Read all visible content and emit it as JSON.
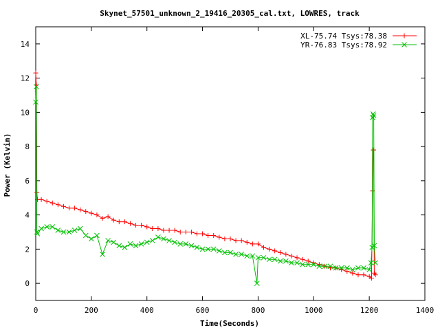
{
  "chart_data": {
    "type": "line",
    "title": "Skynet_57501_unknown_2_19416_20305_cal.txt, LOWRES, track",
    "xlabel": "Time(Seconds)",
    "ylabel": "Power (Kelvin)",
    "xlim": [
      0,
      1400
    ],
    "ylim": [
      -1,
      15
    ],
    "xticks": [
      0,
      200,
      400,
      600,
      800,
      1000,
      1200,
      1400
    ],
    "yticks": [
      0,
      2,
      4,
      6,
      8,
      10,
      12,
      14
    ],
    "grid": false,
    "legend_position": "top-right",
    "series": [
      {
        "name": "XL-75.74 Tsys:78.38",
        "color": "#ff0000",
        "marker": "plus",
        "points": [
          [
            0,
            12.3
          ],
          [
            2,
            11.6
          ],
          [
            4,
            5.3
          ],
          [
            6,
            4.9
          ],
          [
            20,
            4.9
          ],
          [
            40,
            4.8
          ],
          [
            60,
            4.7
          ],
          [
            80,
            4.6
          ],
          [
            100,
            4.5
          ],
          [
            120,
            4.4
          ],
          [
            140,
            4.4
          ],
          [
            160,
            4.3
          ],
          [
            180,
            4.2
          ],
          [
            200,
            4.1
          ],
          [
            220,
            4.0
          ],
          [
            240,
            3.8
          ],
          [
            260,
            3.9
          ],
          [
            280,
            3.7
          ],
          [
            300,
            3.6
          ],
          [
            320,
            3.6
          ],
          [
            340,
            3.5
          ],
          [
            360,
            3.4
          ],
          [
            380,
            3.4
          ],
          [
            400,
            3.3
          ],
          [
            420,
            3.2
          ],
          [
            440,
            3.2
          ],
          [
            460,
            3.1
          ],
          [
            480,
            3.1
          ],
          [
            500,
            3.1
          ],
          [
            520,
            3.0
          ],
          [
            540,
            3.0
          ],
          [
            560,
            3.0
          ],
          [
            580,
            2.9
          ],
          [
            600,
            2.9
          ],
          [
            620,
            2.8
          ],
          [
            640,
            2.8
          ],
          [
            660,
            2.7
          ],
          [
            680,
            2.6
          ],
          [
            700,
            2.6
          ],
          [
            720,
            2.5
          ],
          [
            740,
            2.5
          ],
          [
            760,
            2.4
          ],
          [
            780,
            2.3
          ],
          [
            800,
            2.3
          ],
          [
            820,
            2.1
          ],
          [
            840,
            2.0
          ],
          [
            860,
            1.9
          ],
          [
            880,
            1.8
          ],
          [
            900,
            1.7
          ],
          [
            920,
            1.6
          ],
          [
            940,
            1.5
          ],
          [
            960,
            1.4
          ],
          [
            980,
            1.3
          ],
          [
            1000,
            1.2
          ],
          [
            1020,
            1.1
          ],
          [
            1040,
            1.0
          ],
          [
            1060,
            0.9
          ],
          [
            1080,
            0.9
          ],
          [
            1100,
            0.8
          ],
          [
            1120,
            0.7
          ],
          [
            1140,
            0.6
          ],
          [
            1160,
            0.5
          ],
          [
            1180,
            0.5
          ],
          [
            1200,
            0.4
          ],
          [
            1208,
            0.3
          ],
          [
            1212,
            5.4
          ],
          [
            1214,
            7.8
          ],
          [
            1216,
            7.8
          ],
          [
            1218,
            0.6
          ],
          [
            1222,
            0.5
          ]
        ]
      },
      {
        "name": "YR-76.83 Tsys:78.92",
        "color": "#00c000",
        "marker": "cross",
        "points": [
          [
            0,
            10.6
          ],
          [
            2,
            11.5
          ],
          [
            4,
            3.0
          ],
          [
            6,
            2.9
          ],
          [
            20,
            3.2
          ],
          [
            40,
            3.3
          ],
          [
            60,
            3.3
          ],
          [
            80,
            3.1
          ],
          [
            100,
            3.0
          ],
          [
            120,
            3.0
          ],
          [
            140,
            3.1
          ],
          [
            160,
            3.2
          ],
          [
            180,
            2.8
          ],
          [
            200,
            2.6
          ],
          [
            220,
            2.8
          ],
          [
            240,
            1.7
          ],
          [
            260,
            2.5
          ],
          [
            280,
            2.4
          ],
          [
            300,
            2.2
          ],
          [
            320,
            2.1
          ],
          [
            340,
            2.3
          ],
          [
            360,
            2.2
          ],
          [
            380,
            2.3
          ],
          [
            400,
            2.4
          ],
          [
            420,
            2.5
          ],
          [
            440,
            2.7
          ],
          [
            460,
            2.6
          ],
          [
            480,
            2.5
          ],
          [
            500,
            2.4
          ],
          [
            520,
            2.3
          ],
          [
            540,
            2.3
          ],
          [
            560,
            2.2
          ],
          [
            580,
            2.1
          ],
          [
            600,
            2.0
          ],
          [
            620,
            2.0
          ],
          [
            640,
            2.0
          ],
          [
            660,
            1.9
          ],
          [
            680,
            1.8
          ],
          [
            700,
            1.8
          ],
          [
            720,
            1.7
          ],
          [
            740,
            1.7
          ],
          [
            760,
            1.6
          ],
          [
            780,
            1.6
          ],
          [
            796,
            0.0
          ],
          [
            800,
            1.5
          ],
          [
            820,
            1.5
          ],
          [
            840,
            1.4
          ],
          [
            860,
            1.4
          ],
          [
            880,
            1.3
          ],
          [
            900,
            1.3
          ],
          [
            920,
            1.2
          ],
          [
            940,
            1.2
          ],
          [
            960,
            1.1
          ],
          [
            980,
            1.1
          ],
          [
            1000,
            1.1
          ],
          [
            1020,
            1.0
          ],
          [
            1040,
            1.0
          ],
          [
            1060,
            1.0
          ],
          [
            1080,
            0.9
          ],
          [
            1100,
            0.9
          ],
          [
            1120,
            0.9
          ],
          [
            1140,
            0.8
          ],
          [
            1160,
            0.9
          ],
          [
            1180,
            0.9
          ],
          [
            1200,
            0.8
          ],
          [
            1206,
            1.2
          ],
          [
            1210,
            2.1
          ],
          [
            1212,
            9.7
          ],
          [
            1214,
            9.9
          ],
          [
            1216,
            9.8
          ],
          [
            1218,
            2.2
          ],
          [
            1222,
            1.2
          ]
        ]
      }
    ]
  }
}
